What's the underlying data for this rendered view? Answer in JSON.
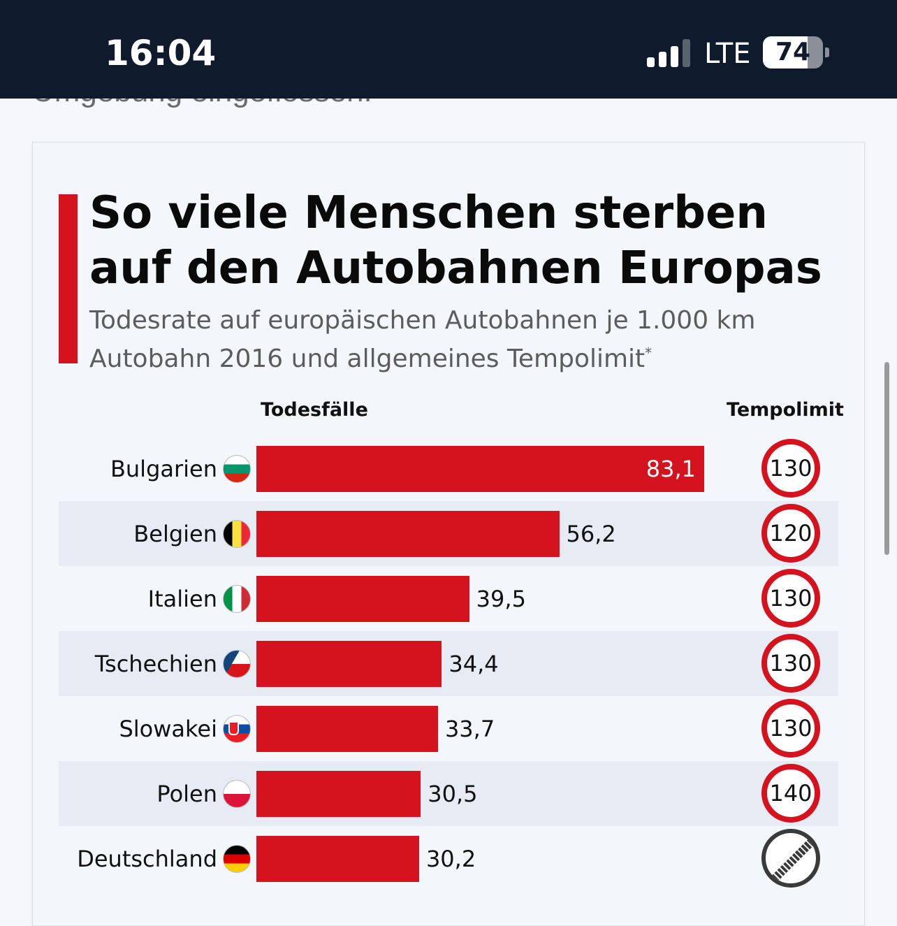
{
  "status_bar": {
    "time": "16:04",
    "network": "LTE",
    "battery_percent": 74,
    "battery_label": "74",
    "signal_bars": 3
  },
  "article": {
    "truncated_text": "Umgebung eingeflossen."
  },
  "chart_data": {
    "type": "bar",
    "orientation": "horizontal",
    "title": "So viele Menschen sterben auf den Autobahnen Europas",
    "subtitle": "Todesrate auf europäischen Autobahnen je 1.000 km Autobahn 2016 und allgemeines Tempolimit",
    "subtitle_note": "*",
    "value_header": "Todesfälle",
    "limit_header": "Tempolimit",
    "value_max": 83.1,
    "colors": {
      "bar": "#d4131e",
      "band": "#e7ecf4",
      "accent": "#d4131e"
    },
    "rows": [
      {
        "country": "Bulgarien",
        "value": 83.1,
        "value_label": "83,1",
        "limit": "130",
        "flag": "bulgaria-flag-icon"
      },
      {
        "country": "Belgien",
        "value": 56.2,
        "value_label": "56,2",
        "limit": "120",
        "flag": "belgium-flag-icon"
      },
      {
        "country": "Italien",
        "value": 39.5,
        "value_label": "39,5",
        "limit": "130",
        "flag": "italy-flag-icon"
      },
      {
        "country": "Tschechien",
        "value": 34.4,
        "value_label": "34,4",
        "limit": "130",
        "flag": "czechia-flag-icon"
      },
      {
        "country": "Slowakei",
        "value": 33.7,
        "value_label": "33,7",
        "limit": "130",
        "flag": "slovakia-flag-icon"
      },
      {
        "country": "Polen",
        "value": 30.5,
        "value_label": "30,5",
        "limit": "140",
        "flag": "poland-flag-icon"
      },
      {
        "country": "Deutschland",
        "value": 30.2,
        "value_label": "30,2",
        "limit": null,
        "flag": "germany-flag-icon",
        "limit_icon": "no-speed-limit-icon"
      }
    ]
  }
}
